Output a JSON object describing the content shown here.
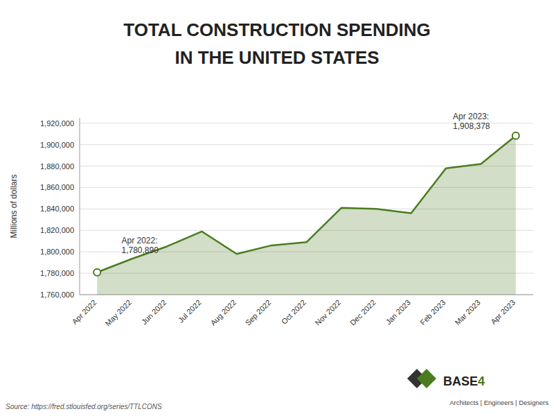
{
  "chart_data": {
    "type": "line",
    "title": "TOTAL CONSTRUCTION SPENDING",
    "subtitle": "IN THE UNITED STATES",
    "y_label": "Millions of dollars",
    "categories": [
      "Apr 2022",
      "May 2022",
      "Jun 2022",
      "Jul 2022",
      "Aug 2022",
      "Sep 2022",
      "Oct 2022",
      "Nov 2022",
      "Dec 2022",
      "Jan 2023",
      "Feb 2023",
      "Mar 2023",
      "Apr 2023"
    ],
    "values": [
      1780890,
      1793500,
      1805000,
      1819000,
      1798000,
      1806000,
      1809000,
      1841000,
      1840000,
      1836000,
      1878000,
      1882000,
      1908378
    ],
    "color": "#4a7c1f",
    "ylim": [
      1760000,
      1925000
    ],
    "yticks": [
      {
        "value": 1760000,
        "label": "1,760,000"
      },
      {
        "value": 1780000,
        "label": "1,780,000"
      },
      {
        "value": 1800000,
        "label": "1,800,000"
      },
      {
        "value": 1820000,
        "label": "1,820,000"
      },
      {
        "value": 1840000,
        "label": "1,840,000"
      },
      {
        "value": 1860000,
        "label": "1,860,000"
      },
      {
        "value": 1880000,
        "label": "1,880,000"
      },
      {
        "value": 1900000,
        "label": "1,900,000"
      },
      {
        "value": 1920000,
        "label": "1,920,000"
      }
    ],
    "grid": true,
    "annotations": [
      {
        "x": "Apr 2022",
        "text": [
          "Apr 2022:",
          "1,780,890"
        ]
      },
      {
        "x": "Apr 2023",
        "text": [
          "Apr 2023:",
          "1,908,378"
        ]
      }
    ],
    "source": "Source: https://fred.stlouisfed.org/series/TTLCONS",
    "logo": {
      "name": "BASE",
      "number": "4",
      "tagline": "Architects | Engineers | Designers"
    }
  }
}
